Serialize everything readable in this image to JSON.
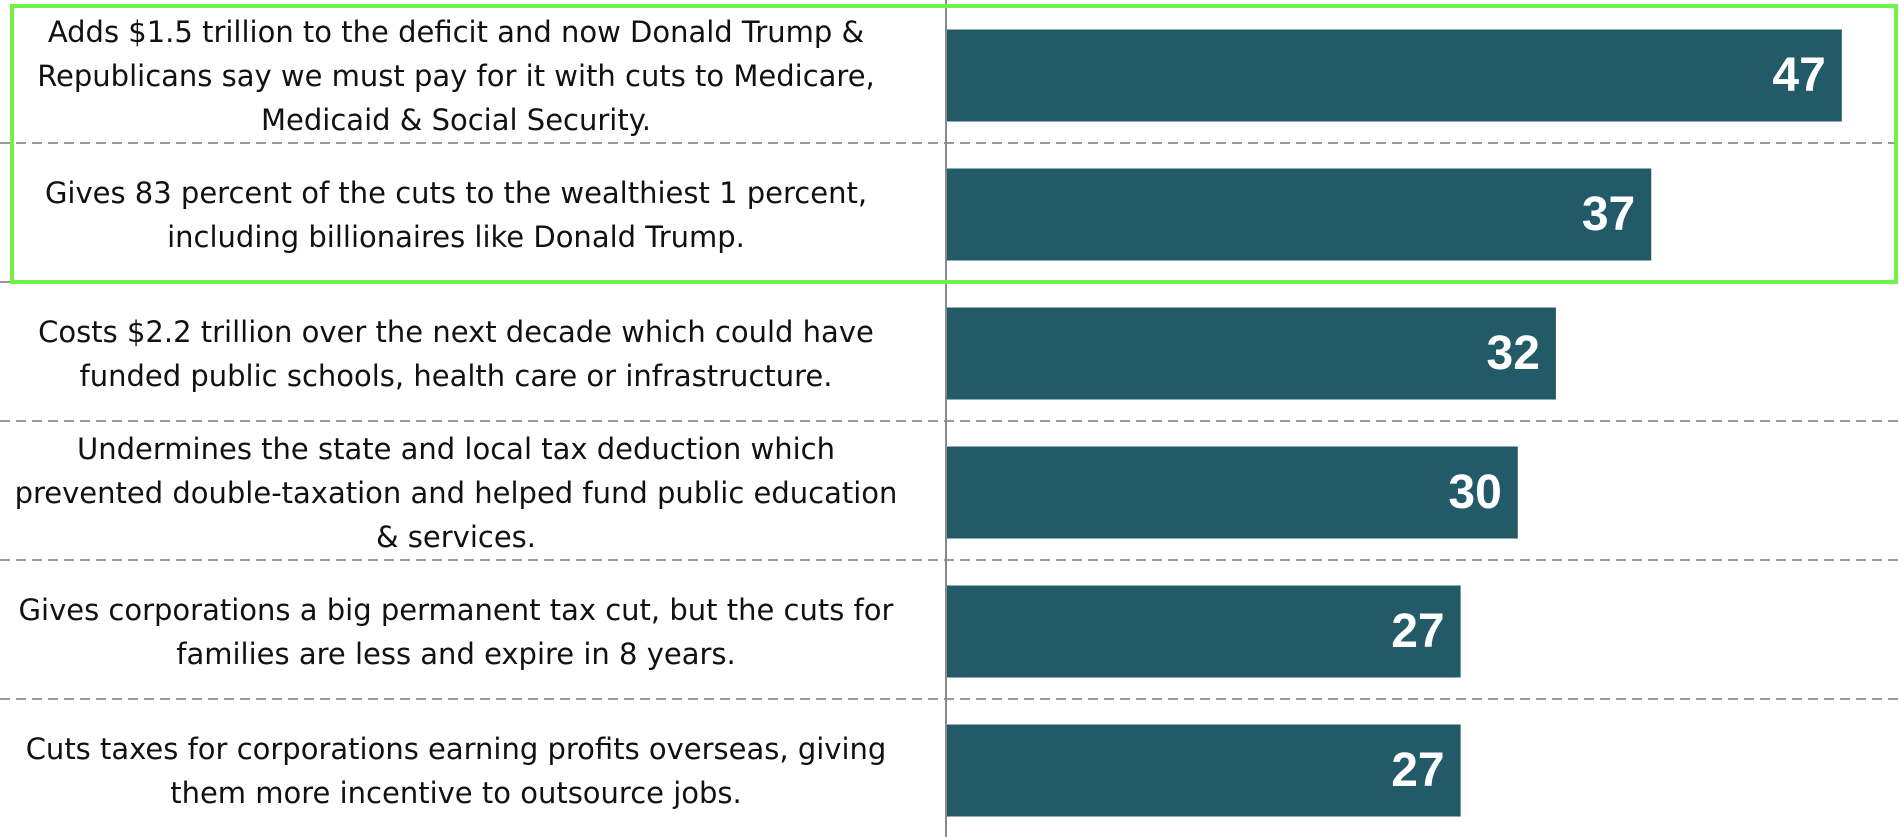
{
  "chart_data": {
    "type": "bar",
    "orientation": "horizontal",
    "categories": [
      "Adds $1.5 trillion to the deficit and now Donald Trump & Republicans say we must pay for it with cuts to Medicare, Medicaid & Social Security.",
      "Gives 83 percent of the cuts to the wealthiest 1 percent, including billionaires like Donald Trump.",
      "Costs $2.2 trillion over the next decade which could have funded public schools, health care or infrastructure.",
      "Undermines the state and local tax deduction which prevented double-taxation and helped fund public education & services.",
      "Gives corporations a big permanent tax cut, but the cuts for families are less and expire in 8 years.",
      "Cuts taxes for corporations earning profits overseas, giving them more incentive to outsource jobs."
    ],
    "values": [
      47,
      37,
      32,
      30,
      27,
      27
    ],
    "color": "#225a68",
    "xlim": [
      0,
      50
    ]
  }
}
